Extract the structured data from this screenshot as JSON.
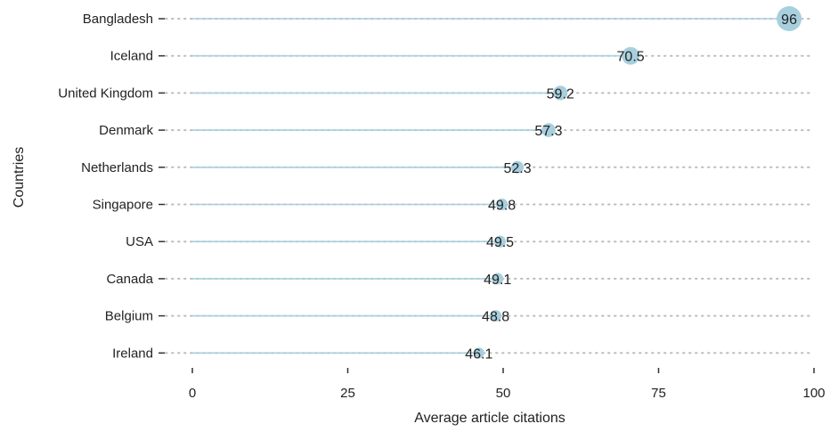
{
  "chart_data": {
    "type": "lollipop",
    "orientation": "horizontal",
    "categories": [
      "Bangladesh",
      "Iceland",
      "United Kingdom",
      "Denmark",
      "Netherlands",
      "Singapore",
      "USA",
      "Canada",
      "Belgium",
      "Ireland"
    ],
    "values": [
      96,
      70.5,
      59.2,
      57.3,
      52.3,
      49.8,
      49.5,
      49.1,
      48.8,
      46.1
    ],
    "data_labels": [
      "96",
      "70.5",
      "59.2",
      "57.3",
      "52.3",
      "49.8",
      "49.5",
      "49.1",
      "48.8",
      "46.1"
    ],
    "xlabel": "Average article citations",
    "ylabel": "Countries",
    "xlim": [
      0,
      100
    ],
    "xticks": [
      0,
      25,
      50,
      75,
      100
    ],
    "xtick_labels": [
      "0",
      "25",
      "50",
      "75",
      "100"
    ],
    "grid": "dotted horizontal lines at each category",
    "legend": "none",
    "colors": {
      "stem": "#a8cfdd",
      "point": "#a8cfdd",
      "grid": "#bdbdbd",
      "text": "#222222"
    },
    "point_size_encodes_value": true
  }
}
